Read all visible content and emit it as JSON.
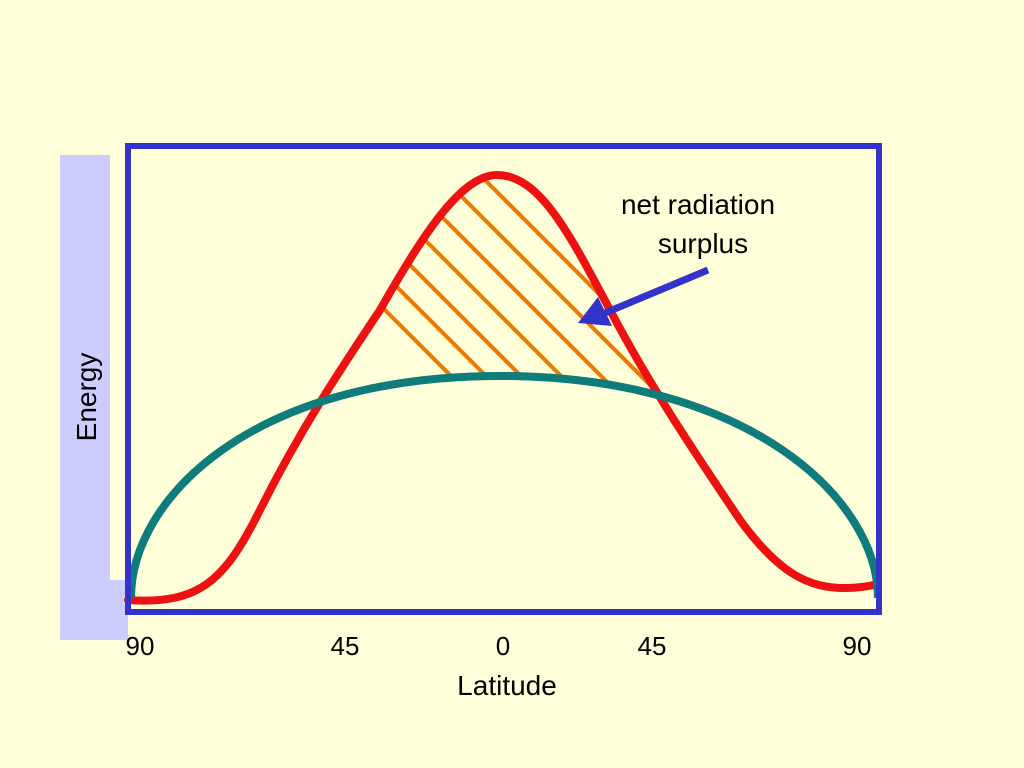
{
  "slide": {
    "background": "#FFFFD9"
  },
  "diagram": {
    "y_axis_label": "Energy",
    "x_axis_label": "Latitude",
    "x_tick_labels": [
      "90",
      "45",
      "0",
      "45",
      "90"
    ],
    "annotation": {
      "lines": [
        "net radiation",
        "surplus"
      ]
    },
    "curves": [
      {
        "name": "red-curve",
        "color": "#EE1111"
      },
      {
        "name": "teal-curve",
        "color": "#0E7C7B"
      }
    ],
    "colors": {
      "frame": "#3333CC",
      "hatch": "#F07800",
      "label_bar": "#CCCCFF",
      "arrow": "#3333CC"
    }
  }
}
